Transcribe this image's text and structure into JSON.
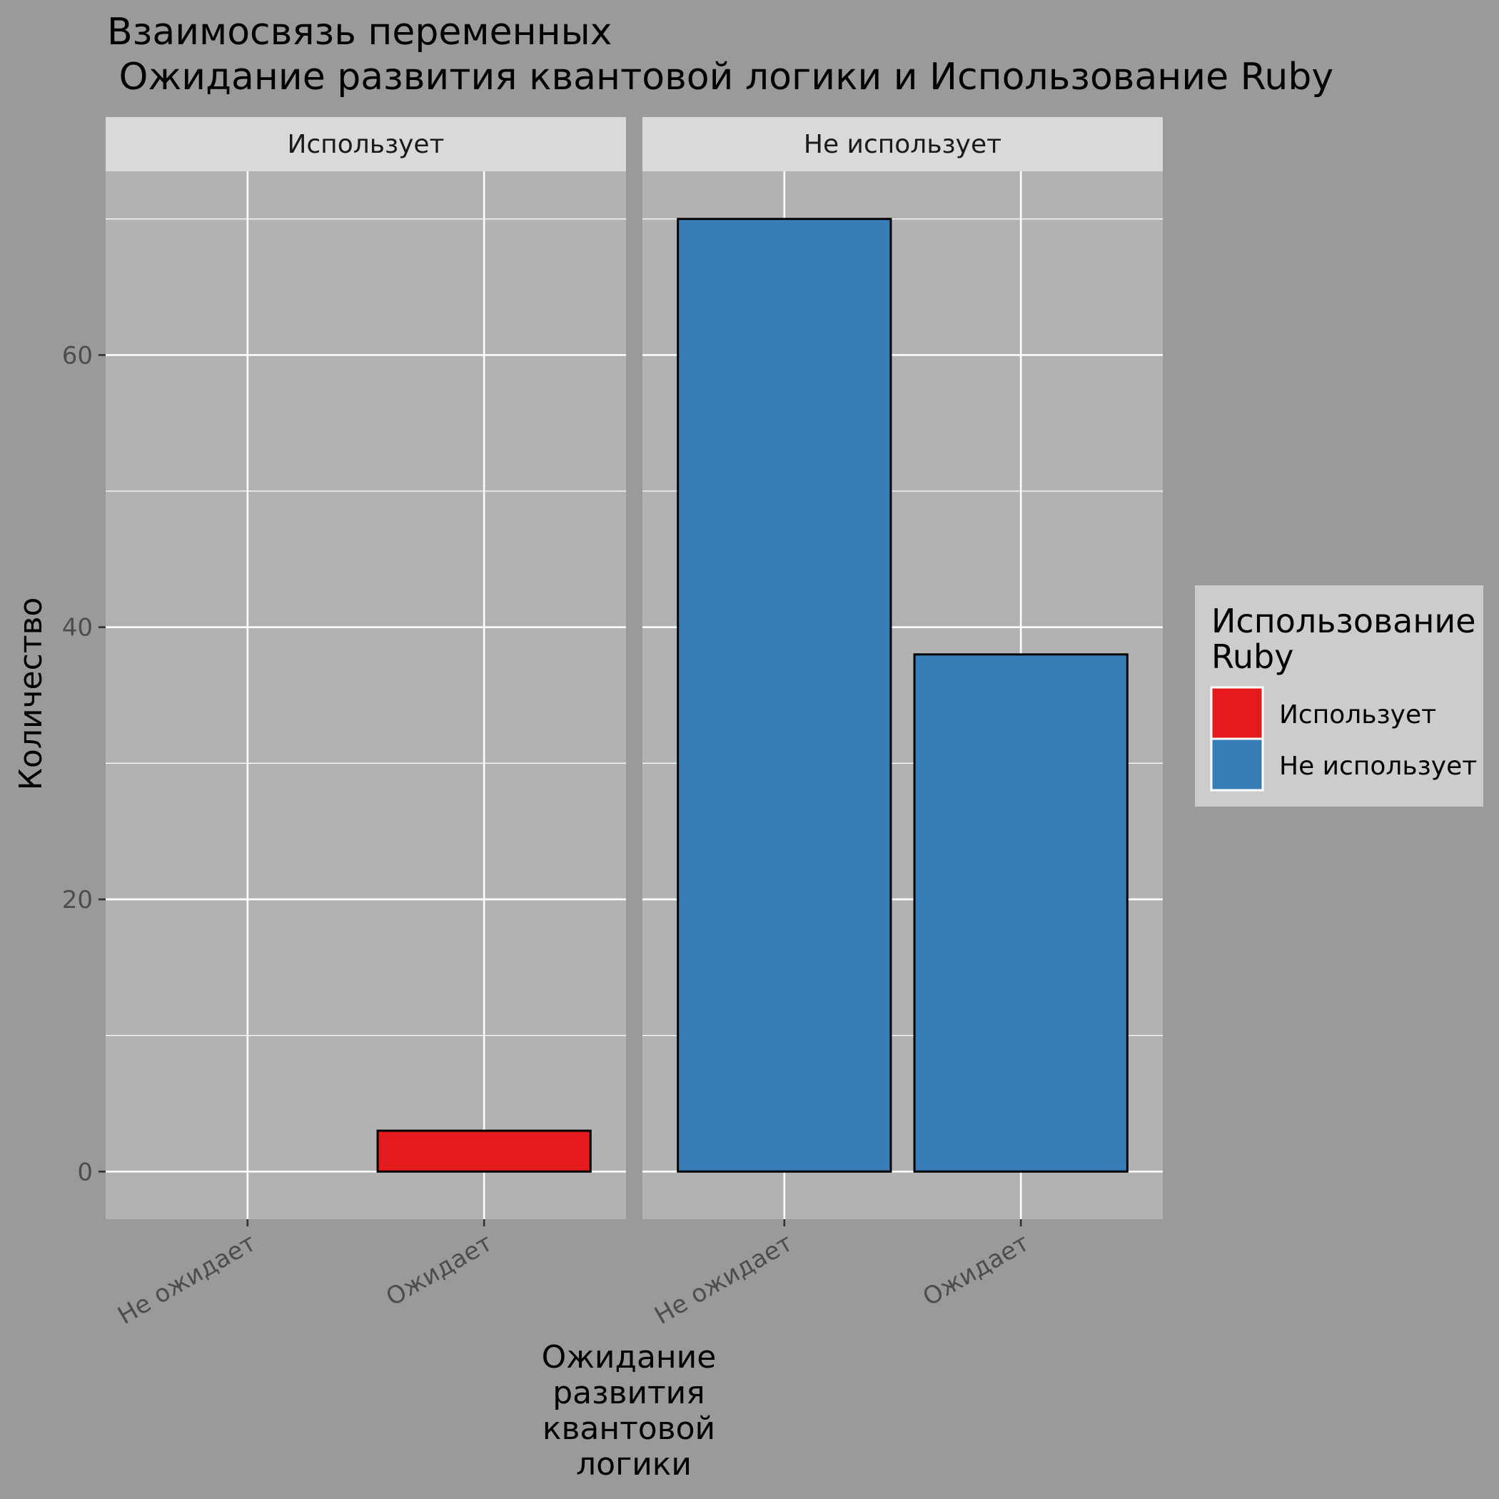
{
  "chart_data": {
    "type": "bar",
    "title_lines": [
      "Взаимосвязь переменных",
      " Ожидание развития квантовой логики и Использование Ruby"
    ],
    "xlabel_lines": [
      "Ожидание",
      "развития",
      "квантовой",
      "логики"
    ],
    "ylabel": "Количество",
    "categories": [
      "Не ожидает",
      "Ожидает"
    ],
    "facets": [
      "Использует",
      "Не использует"
    ],
    "series": [
      {
        "name": "Использует",
        "facet": "Использует",
        "color": "#e41a1c",
        "values": [
          0,
          3
        ]
      },
      {
        "name": "Не использует",
        "facet": "Не использует",
        "color": "#377eb8",
        "values": [
          70,
          38
        ]
      }
    ],
    "ylim": [
      -3.5,
      73.5
    ],
    "yticks": [
      0,
      20,
      40,
      60
    ],
    "grid": true,
    "legend": {
      "title_lines": [
        "Использование",
        "Ruby"
      ],
      "position": "right",
      "entries": [
        {
          "label": "Использует",
          "color": "#e41a1c"
        },
        {
          "label": "Не использует",
          "color": "#377eb8"
        }
      ]
    },
    "colors": {
      "background": "#9a9a9a",
      "panel": "#b2b2b2",
      "strip": "#d9d9d9",
      "legend_box": "#cccccc",
      "grid": "#ffffff"
    }
  }
}
